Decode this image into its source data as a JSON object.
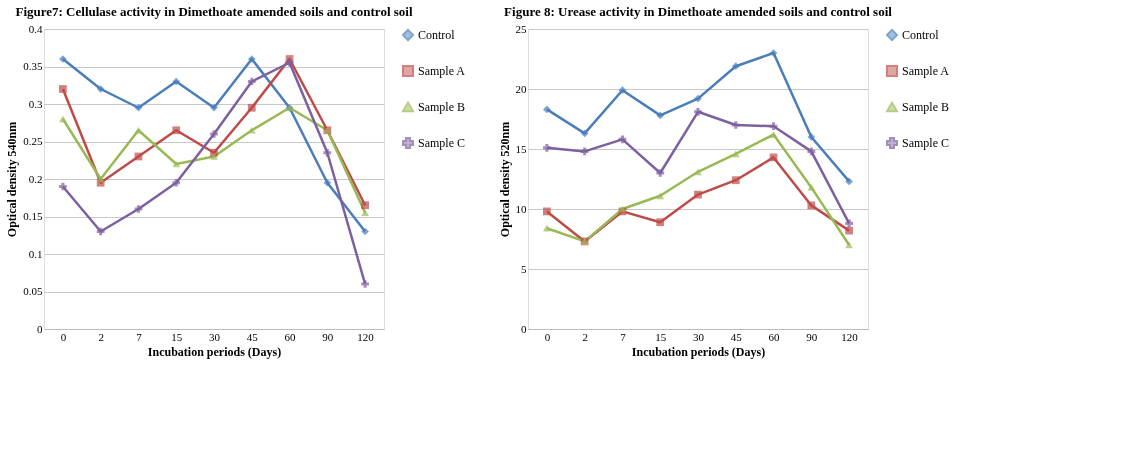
{
  "chart_data": [
    {
      "type": "line",
      "title": "Figure7: Cellulase activity in Dimethoate amended soils and control soil",
      "xlabel": "Incubation periods (Days)",
      "ylabel": "Optical density 540nm",
      "categories": [
        "0",
        "2",
        "7",
        "15",
        "30",
        "45",
        "60",
        "90",
        "120"
      ],
      "ylim": [
        0,
        0.4
      ],
      "yticks": [
        0,
        0.05,
        0.1,
        0.15,
        0.2,
        0.25,
        0.3,
        0.35,
        0.4
      ],
      "grid": "y",
      "legend": "right",
      "series": [
        {
          "name": "Control",
          "color": "#4a7ebb",
          "marker": "diamond",
          "values": [
            0.36,
            0.32,
            0.295,
            0.33,
            0.295,
            0.36,
            0.295,
            0.195,
            0.13
          ]
        },
        {
          "name": "Sample A",
          "color": "#be4b48",
          "marker": "square",
          "values": [
            0.32,
            0.195,
            0.23,
            0.265,
            0.235,
            0.295,
            0.36,
            0.265,
            0.165
          ]
        },
        {
          "name": "Sample B",
          "color": "#98b954",
          "marker": "triangle",
          "values": [
            0.28,
            0.2,
            0.265,
            0.22,
            0.23,
            0.265,
            0.295,
            0.265,
            0.155
          ]
        },
        {
          "name": "Sample C",
          "color": "#7d60a0",
          "marker": "cross",
          "values": [
            0.19,
            0.13,
            0.16,
            0.195,
            0.26,
            0.33,
            0.355,
            0.235,
            0.06
          ]
        }
      ]
    },
    {
      "type": "line",
      "title": "Figure 8: Urease activity in Dimethoate amended soils and control soil",
      "xlabel": "Incubation periods (Days)",
      "ylabel": "Optical density 520nm",
      "categories": [
        "0",
        "2",
        "7",
        "15",
        "30",
        "45",
        "60",
        "90",
        "120"
      ],
      "ylim": [
        0,
        25
      ],
      "yticks": [
        0,
        5,
        10,
        15,
        20,
        25
      ],
      "grid": "y",
      "legend": "right",
      "series": [
        {
          "name": "Control",
          "color": "#4a7ebb",
          "marker": "diamond",
          "values": [
            18.3,
            16.3,
            19.9,
            17.8,
            19.2,
            21.9,
            23,
            16,
            12.3
          ]
        },
        {
          "name": "Sample A",
          "color": "#be4b48",
          "marker": "square",
          "values": [
            9.8,
            7.3,
            9.8,
            8.9,
            11.2,
            12.4,
            14.3,
            10.3,
            8.2
          ]
        },
        {
          "name": "Sample B",
          "color": "#98b954",
          "marker": "triangle",
          "values": [
            8.4,
            7.3,
            10,
            11.1,
            13.1,
            14.6,
            16.2,
            11.8,
            7
          ]
        },
        {
          "name": "Sample C",
          "color": "#7d60a0",
          "marker": "cross",
          "values": [
            15.1,
            14.8,
            15.8,
            13,
            18.1,
            17,
            16.9,
            14.8,
            8.8
          ]
        }
      ]
    }
  ]
}
